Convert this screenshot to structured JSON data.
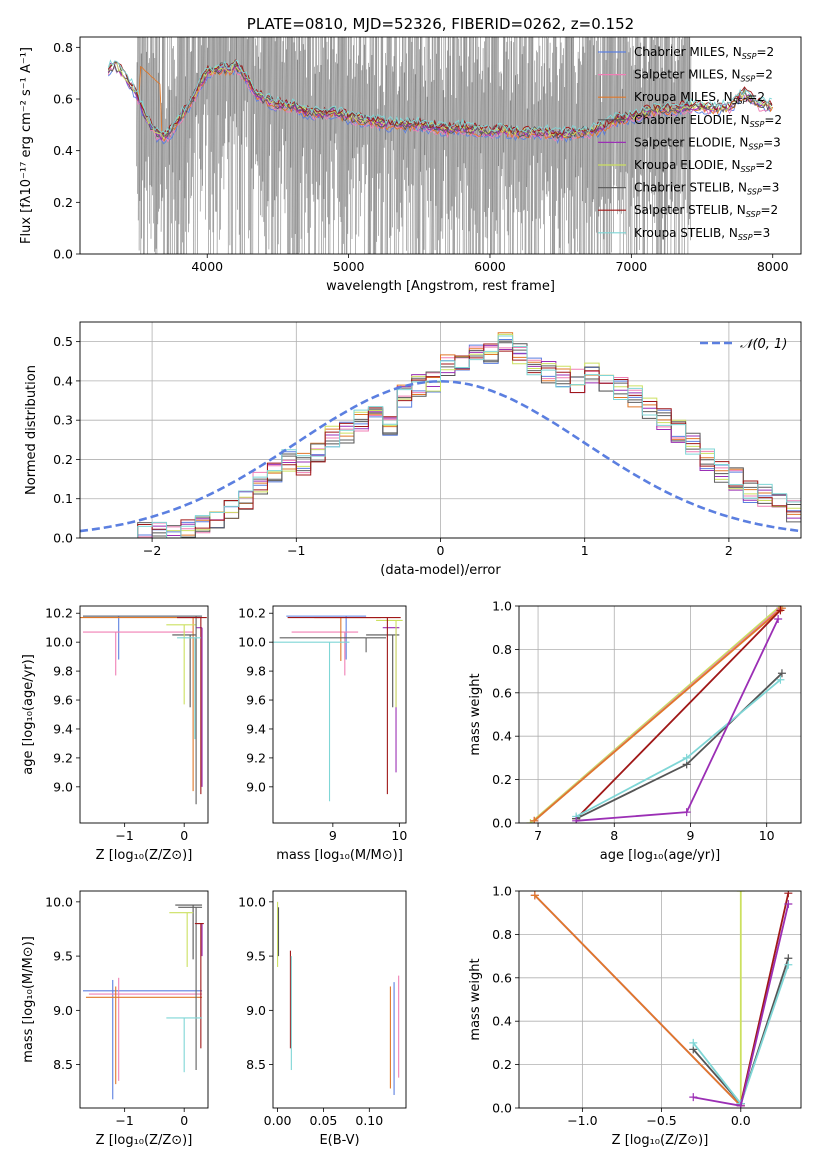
{
  "chart_data": [
    {
      "id": "spectrum",
      "type": "line",
      "title": "PLATE=0810, MJD=52326, FIBERID=0262, z=0.152",
      "xlabel": "wavelength [Angstrom, rest frame]",
      "ylabel": "Flux [f$_\\lambda$10$^{-17}$ erg cm$^{-2}$ s$^{-1}$ A$^{-1}$]",
      "ylabel_display": "Flux [fλ10⁻¹⁷ erg cm⁻² s⁻¹ A⁻¹]",
      "xlim": [
        3100,
        8200
      ],
      "ylim": [
        0,
        0.84
      ],
      "xticks": [
        4000,
        5000,
        6000,
        7000,
        8000
      ],
      "yticks": [
        0.0,
        0.2,
        0.4,
        0.6,
        0.8
      ],
      "legend_position": "upper right",
      "data_color": "#808080",
      "series": [
        {
          "name": "Chabrier MILES, N$_{SSP}$=2",
          "label": "Chabrier MILES, N",
          "sub": "SSP",
          "suffix": "=2",
          "color": "#5b7fe0"
        },
        {
          "name": "Salpeter MILES, N$_{SSP}$=2",
          "label": "Salpeter MILES, N",
          "sub": "SSP",
          "suffix": "=2",
          "color": "#f07fb5"
        },
        {
          "name": "Kroupa MILES, N$_{SSP}$=2",
          "label": "Kroupa MILES, N",
          "sub": "SSP",
          "suffix": "=2",
          "color": "#e0782a"
        },
        {
          "name": "Chabrier ELODIE, N$_{SSP}$=2",
          "label": "Chabrier ELODIE, N",
          "sub": "SSP",
          "suffix": "=2",
          "color": "#555555"
        },
        {
          "name": "Salpeter ELODIE, N$_{SSP}$=3",
          "label": "Salpeter ELODIE, N",
          "sub": "SSP",
          "suffix": "=3",
          "color": "#9b2fb5"
        },
        {
          "name": "Kroupa ELODIE, N$_{SSP}$=2",
          "label": "Kroupa ELODIE, N",
          "sub": "SSP",
          "suffix": "=2",
          "color": "#cce060"
        },
        {
          "name": "Chabrier STELIB, N$_{SSP}$=3",
          "label": "Chabrier STELIB, N",
          "sub": "SSP",
          "suffix": "=3",
          "color": "#606060"
        },
        {
          "name": "Salpeter STELIB, N$_{SSP}$=2",
          "label": "Salpeter STELIB, N",
          "sub": "SSP",
          "suffix": "=2",
          "color": "#a01818"
        },
        {
          "name": "Kroupa STELIB, N$_{SSP}$=3",
          "label": "Kroupa STELIB, N",
          "sub": "SSP",
          "suffix": "=3",
          "color": "#7fd6d6"
        }
      ],
      "model_x": [
        3300,
        3350,
        3400,
        3450,
        3500,
        3550,
        3600,
        3650,
        3700,
        3750,
        3800,
        3850,
        3900,
        3950,
        4000,
        4050,
        4100,
        4150,
        4200,
        4250,
        4300,
        4350,
        4400,
        4500,
        4600,
        4700,
        4800,
        4900,
        5000,
        5100,
        5200,
        5300,
        5400,
        5500,
        5600,
        5700,
        5800,
        5900,
        6000,
        6100,
        6200,
        6300,
        6400,
        6500,
        6600,
        6700,
        6800,
        6900,
        7000,
        7100,
        7200,
        7300,
        7400,
        7500,
        7600,
        7700,
        7800,
        7900,
        8000
      ],
      "model_y": [
        0.72,
        0.73,
        0.7,
        0.66,
        0.62,
        0.55,
        0.5,
        0.46,
        0.45,
        0.48,
        0.52,
        0.56,
        0.6,
        0.66,
        0.7,
        0.71,
        0.72,
        0.71,
        0.73,
        0.7,
        0.66,
        0.62,
        0.6,
        0.58,
        0.57,
        0.55,
        0.54,
        0.55,
        0.53,
        0.52,
        0.51,
        0.5,
        0.5,
        0.5,
        0.49,
        0.48,
        0.49,
        0.48,
        0.47,
        0.48,
        0.47,
        0.47,
        0.47,
        0.46,
        0.47,
        0.47,
        0.49,
        0.52,
        0.53,
        0.55,
        0.56,
        0.56,
        0.57,
        0.57,
        0.56,
        0.57,
        0.62,
        0.58,
        0.57
      ],
      "data_x_range": [
        3500,
        7420
      ]
    },
    {
      "id": "residuals",
      "type": "histogram",
      "xlabel": "(data-model)/error",
      "ylabel": "Normed distribution",
      "xlim": [
        -2.5,
        2.5
      ],
      "ylim": [
        0,
        0.55
      ],
      "xticks": [
        -2,
        -1,
        0,
        1,
        2
      ],
      "yticks": [
        0.0,
        0.1,
        0.2,
        0.3,
        0.4,
        0.5
      ],
      "grid": true,
      "legend_position": "upper right",
      "normal_label": "𝒩(0, 1)",
      "normal_color": "#5b7fe0",
      "bin_edges_range": [
        -2.2,
        2.5
      ],
      "bin_width": 0.1,
      "base_hist": [
        0.0,
        0.01,
        0.01,
        0.01,
        0.02,
        0.03,
        0.05,
        0.07,
        0.1,
        0.14,
        0.17,
        0.2,
        0.19,
        0.22,
        0.26,
        0.27,
        0.3,
        0.32,
        0.29,
        0.36,
        0.39,
        0.4,
        0.44,
        0.45,
        0.47,
        0.47,
        0.5,
        0.47,
        0.44,
        0.42,
        0.41,
        0.4,
        0.42,
        0.39,
        0.38,
        0.36,
        0.33,
        0.3,
        0.27,
        0.24,
        0.2,
        0.17,
        0.15,
        0.12,
        0.11,
        0.09,
        0.07
      ]
    },
    {
      "id": "age-vs-Z",
      "type": "errorbar",
      "xlabel": "Z [log₁₀(Z/Z⊙)]",
      "ylabel": "age  [log₁₀(age/yr)]",
      "xlim": [
        -1.75,
        0.4
      ],
      "ylim": [
        8.75,
        10.25
      ],
      "xticks": [
        -1,
        0
      ],
      "yticks": [
        9.0,
        9.2,
        9.4,
        9.6,
        9.8,
        10.0,
        10.2
      ],
      "points": [
        {
          "series": 0,
          "x": -1.1,
          "y": 10.18,
          "xerr": [
            0.6,
            1.4
          ],
          "yerr": [
            0.3,
            0.0
          ]
        },
        {
          "series": 1,
          "x": -1.15,
          "y": 10.07,
          "xerr": [
            0.55,
            1.3
          ],
          "yerr": [
            0.3,
            0.0
          ]
        },
        {
          "series": 2,
          "x": 0.15,
          "y": 10.17,
          "xerr": [
            1.9,
            0.1
          ],
          "yerr": [
            1.2,
            0.0
          ]
        },
        {
          "series": 3,
          "x": 0.1,
          "y": 10.05,
          "xerr": [
            0.3,
            0.1
          ],
          "yerr": [
            0.5,
            0.0
          ]
        },
        {
          "series": 4,
          "x": 0.3,
          "y": 10.1,
          "xerr": [
            0.1,
            0.0
          ],
          "yerr": [
            1.1,
            0.0
          ]
        },
        {
          "series": 5,
          "x": 0.0,
          "y": 10.12,
          "xerr": [
            0.3,
            0.2
          ],
          "yerr": [
            0.55,
            0.0
          ]
        },
        {
          "series": 6,
          "x": 0.2,
          "y": 10.18,
          "xerr": [
            1.9,
            0.1
          ],
          "yerr": [
            1.3,
            0.0
          ]
        },
        {
          "series": 7,
          "x": 0.28,
          "y": 10.17,
          "xerr": [
            0.4,
            0.1
          ],
          "yerr": [
            1.22,
            0.0
          ]
        },
        {
          "series": 8,
          "x": 0.18,
          "y": 10.03,
          "xerr": [
            0.3,
            0.1
          ],
          "yerr": [
            0.7,
            0.0
          ]
        }
      ]
    },
    {
      "id": "age-vs-mass",
      "type": "errorbar",
      "xlabel": "mass [log₁₀(M/M⊙)]",
      "ylabel": "",
      "xlim": [
        8.1,
        10.1
      ],
      "ylim": [
        8.75,
        10.25
      ],
      "xticks": [
        9,
        10
      ],
      "yticks": [
        9.0,
        9.2,
        9.4,
        9.6,
        9.8,
        10.0,
        10.2
      ],
      "points": [
        {
          "series": 0,
          "x": 9.2,
          "y": 10.18,
          "xerr": [
            0.9,
            0.3
          ],
          "yerr": [
            0.3,
            0.0
          ]
        },
        {
          "series": 1,
          "x": 9.18,
          "y": 10.07,
          "xerr": [
            0.8,
            0.2
          ],
          "yerr": [
            0.3,
            0.0
          ]
        },
        {
          "series": 2,
          "x": 9.12,
          "y": 10.17,
          "xerr": [
            0.4,
            0.6
          ],
          "yerr": [
            0.3,
            0.0
          ]
        },
        {
          "series": 3,
          "x": 9.9,
          "y": 10.05,
          "xerr": [
            0.4,
            0.1
          ],
          "yerr": [
            0.5,
            0.0
          ]
        },
        {
          "series": 4,
          "x": 9.95,
          "y": 10.1,
          "xerr": [
            0.2,
            0.05
          ],
          "yerr": [
            1.0,
            0.0
          ]
        },
        {
          "series": 5,
          "x": 9.95,
          "y": 10.15,
          "xerr": [
            0.3,
            0.1
          ],
          "yerr": [
            0.6,
            0.0
          ]
        },
        {
          "series": 6,
          "x": 9.5,
          "y": 10.03,
          "xerr": [
            1.3,
            0.3
          ],
          "yerr": [
            0.1,
            0.0
          ]
        },
        {
          "series": 7,
          "x": 9.82,
          "y": 10.17,
          "xerr": [
            1.5,
            0.2
          ],
          "yerr": [
            1.22,
            0.0
          ]
        },
        {
          "series": 8,
          "x": 8.95,
          "y": 10.0,
          "xerr": [
            0.9,
            0.3
          ],
          "yerr": [
            1.1,
            0.0
          ]
        }
      ]
    },
    {
      "id": "weight-vs-age",
      "type": "line",
      "xlabel": "age  [log₁₀(age/yr)]",
      "ylabel": "mass weight",
      "xlim": [
        6.75,
        10.45
      ],
      "ylim": [
        0,
        1
      ],
      "xticks": [
        7,
        8,
        9,
        10
      ],
      "yticks": [
        0.0,
        0.2,
        0.4,
        0.6,
        0.8,
        1.0
      ],
      "grid": true,
      "lines": [
        {
          "series": 5,
          "x": [
            6.9,
            10.18
          ],
          "y": [
            0.0,
            1.0
          ]
        },
        {
          "series": 0,
          "x": [
            6.95,
            10.18
          ],
          "y": [
            0.01,
            0.99
          ]
        },
        {
          "series": 1,
          "x": [
            6.95,
            10.18
          ],
          "y": [
            0.01,
            0.99
          ]
        },
        {
          "series": 2,
          "x": [
            6.95,
            10.2
          ],
          "y": [
            0.01,
            0.99
          ]
        },
        {
          "series": 7,
          "x": [
            7.5,
            10.18
          ],
          "y": [
            0.02,
            0.98
          ]
        },
        {
          "series": 3,
          "x": [
            7.5,
            8.95,
            10.2
          ],
          "y": [
            0.02,
            0.27,
            0.69
          ]
        },
        {
          "series": 8,
          "x": [
            7.5,
            8.95,
            10.18
          ],
          "y": [
            0.03,
            0.3,
            0.66
          ]
        },
        {
          "series": 4,
          "x": [
            7.5,
            8.95,
            10.15
          ],
          "y": [
            0.01,
            0.05,
            0.94
          ]
        }
      ]
    },
    {
      "id": "mass-vs-Z",
      "type": "errorbar",
      "xlabel": "Z [log₁₀(Z/Z⊙)]",
      "ylabel": "mass [log₁₀(M/M⊙)]",
      "xlim": [
        -1.75,
        0.4
      ],
      "ylim": [
        8.1,
        10.1
      ],
      "xticks": [
        -1,
        0
      ],
      "yticks": [
        8.5,
        9.0,
        9.5,
        10.0
      ],
      "points": [
        {
          "series": 0,
          "x": -1.2,
          "y": 9.18,
          "xerr": [
            0.5,
            1.5
          ],
          "yerr": [
            1.0,
            0.1
          ]
        },
        {
          "series": 1,
          "x": -1.1,
          "y": 9.15,
          "xerr": [
            0.5,
            1.4
          ],
          "yerr": [
            0.8,
            0.15
          ]
        },
        {
          "series": 2,
          "x": -1.15,
          "y": 9.12,
          "xerr": [
            0.5,
            1.45
          ],
          "yerr": [
            0.8,
            0.1
          ]
        },
        {
          "series": 3,
          "x": 0.15,
          "y": 9.97,
          "xerr": [
            0.3,
            0.15
          ],
          "yerr": [
            0.5,
            0.0
          ]
        },
        {
          "series": 4,
          "x": 0.3,
          "y": 9.8,
          "xerr": [
            0.1,
            0.0
          ],
          "yerr": [
            0.3,
            0.0
          ]
        },
        {
          "series": 5,
          "x": 0.05,
          "y": 9.9,
          "xerr": [
            0.3,
            0.1
          ],
          "yerr": [
            0.5,
            0.0
          ]
        },
        {
          "series": 6,
          "x": 0.2,
          "y": 9.95,
          "xerr": [
            0.3,
            0.1
          ],
          "yerr": [
            1.5,
            0.0
          ]
        },
        {
          "series": 7,
          "x": 0.28,
          "y": 9.8,
          "xerr": [
            0.1,
            0.05
          ],
          "yerr": [
            1.15,
            0.0
          ]
        },
        {
          "series": 8,
          "x": 0.0,
          "y": 8.93,
          "xerr": [
            0.3,
            0.3
          ],
          "yerr": [
            0.5,
            0.0
          ]
        }
      ]
    },
    {
      "id": "mass-vs-EBV",
      "type": "errorbar",
      "xlabel": "E(B-V)",
      "ylabel": "",
      "xlim": [
        -0.005,
        0.14
      ],
      "ylim": [
        8.1,
        10.1
      ],
      "xticks": [
        0.0,
        0.05,
        0.1
      ],
      "yticks": [
        8.5,
        9.0,
        9.5,
        10.0
      ],
      "vlines": [
        {
          "series": 5,
          "x": 0.0,
          "y0": 9.4,
          "y1": 10.0
        },
        {
          "series": 3,
          "x": 0.001,
          "y0": 9.5,
          "y1": 9.95
        },
        {
          "series": 7,
          "x": 0.014,
          "y0": 8.65,
          "y1": 9.55
        },
        {
          "series": 8,
          "x": 0.015,
          "y0": 8.45,
          "y1": 9.5
        },
        {
          "series": 2,
          "x": 0.123,
          "y0": 8.28,
          "y1": 9.22
        },
        {
          "series": 0,
          "x": 0.127,
          "y0": 8.22,
          "y1": 9.26
        },
        {
          "series": 1,
          "x": 0.132,
          "y0": 8.38,
          "y1": 9.32
        }
      ]
    },
    {
      "id": "weight-vs-Z",
      "type": "line",
      "xlabel": "Z [log₁₀(Z/Z⊙)]",
      "ylabel": "mass weight",
      "xlim": [
        -1.4,
        0.38
      ],
      "ylim": [
        0,
        1
      ],
      "xticks": [
        -1.0,
        -0.5,
        0.0
      ],
      "yticks": [
        0.0,
        0.2,
        0.4,
        0.6,
        0.8,
        1.0
      ],
      "grid": true,
      "lines": [
        {
          "series": 5,
          "x": [
            0.0,
            0.0
          ],
          "y": [
            1.0,
            0.01
          ]
        },
        {
          "series": 0,
          "x": [
            -1.3,
            0.0
          ],
          "y": [
            0.98,
            0.01
          ]
        },
        {
          "series": 1,
          "x": [
            -1.3,
            0.0
          ],
          "y": [
            0.98,
            0.01
          ]
        },
        {
          "series": 2,
          "x": [
            -1.3,
            0.0
          ],
          "y": [
            0.98,
            0.01
          ]
        },
        {
          "series": 7,
          "x": [
            0.0,
            0.3
          ],
          "y": [
            0.02,
            0.99
          ]
        },
        {
          "series": 3,
          "x": [
            -0.3,
            0.0,
            0.3
          ],
          "y": [
            0.27,
            0.02,
            0.69
          ]
        },
        {
          "series": 8,
          "x": [
            -0.3,
            0.0,
            0.3
          ],
          "y": [
            0.3,
            0.02,
            0.66
          ]
        },
        {
          "series": 4,
          "x": [
            -0.3,
            0.0,
            0.3
          ],
          "y": [
            0.05,
            0.01,
            0.94
          ]
        }
      ]
    }
  ]
}
